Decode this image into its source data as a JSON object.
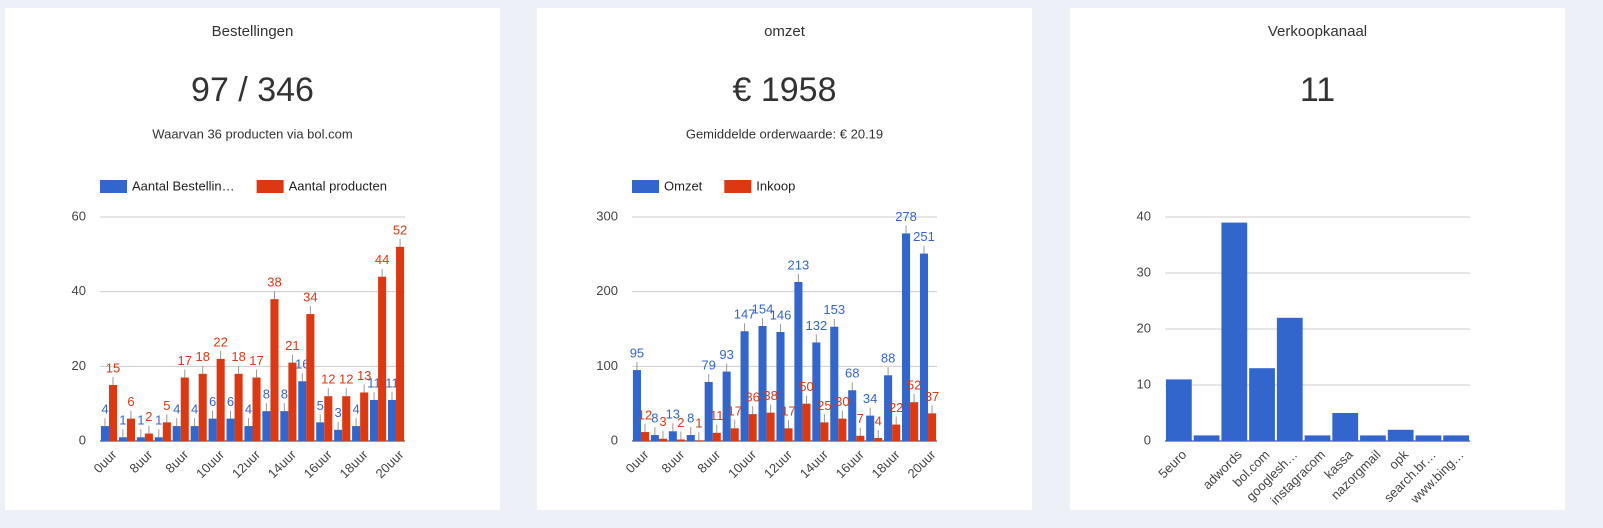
{
  "chart_data": [
    {
      "type": "bar",
      "title": "Bestellingen",
      "kpi": "97 / 346",
      "subtitle": "Waarvan 36 producten via bol.com",
      "categories": [
        "0uur",
        null,
        "8uur",
        null,
        "8uur",
        null,
        "10uur",
        null,
        "12uur",
        null,
        "14uur",
        null,
        "16uur",
        null,
        "18uur",
        null,
        "20uur"
      ],
      "series": [
        {
          "name": "Aantal Bestellin…",
          "color": "#3366cc",
          "values": [
            4,
            1,
            1,
            1,
            4,
            4,
            6,
            6,
            4,
            8,
            8,
            16,
            5,
            3,
            4,
            11,
            11
          ]
        },
        {
          "name": "Aantal producten",
          "color": "#dc3912",
          "values": [
            15,
            6,
            2,
            5,
            17,
            18,
            22,
            18,
            17,
            38,
            21,
            34,
            12,
            12,
            13,
            44,
            52
          ]
        }
      ],
      "ylim": [
        0,
        60
      ],
      "yticks": [
        0,
        20,
        40,
        60
      ],
      "grid": true,
      "legend": "top",
      "data_labels": true
    },
    {
      "type": "bar",
      "title": "omzet",
      "kpi": "€ 1958",
      "subtitle": "Gemiddelde orderwaarde: € 20.19",
      "categories": [
        "0uur",
        null,
        "8uur",
        null,
        "8uur",
        null,
        "10uur",
        null,
        "12uur",
        null,
        "14uur",
        null,
        "16uur",
        null,
        "18uur",
        null,
        "20uur"
      ],
      "series": [
        {
          "name": "Omzet",
          "color": "#3366cc",
          "values": [
            95,
            8,
            13,
            8,
            79,
            93,
            147,
            154,
            146,
            213,
            132,
            153,
            68,
            34,
            88,
            278,
            251
          ]
        },
        {
          "name": "Inkoop",
          "color": "#dc3912",
          "values": [
            12,
            3,
            2,
            1,
            11,
            17,
            36,
            38,
            17,
            50,
            25,
            30,
            7,
            4,
            22,
            52,
            37
          ]
        }
      ],
      "ylim": [
        0,
        300
      ],
      "yticks": [
        0,
        100,
        200,
        300
      ],
      "grid": true,
      "legend": "top",
      "data_labels": true
    },
    {
      "type": "bar",
      "title": "Verkoopkanaal",
      "kpi": "11",
      "categories": [
        "5euro",
        null,
        "adwords",
        "bol.com",
        "googlesh…",
        "instagracom",
        "kassa",
        "nazorgmail",
        "opk",
        "search.br…",
        "www.bing…"
      ],
      "values": [
        11,
        1,
        39,
        13,
        22,
        1,
        5,
        1,
        2,
        1,
        1
      ],
      "color": "#3366cc",
      "ylim": [
        0,
        40
      ],
      "yticks": [
        0,
        10,
        20,
        30,
        40
      ],
      "grid": true
    }
  ]
}
